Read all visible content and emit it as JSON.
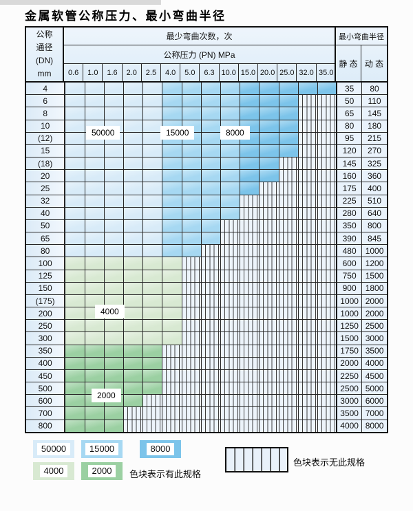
{
  "title": "金属软管公称压力、最小弯曲半径",
  "header": {
    "dn_lines": [
      "公称",
      "通径",
      "(DN)",
      "mm"
    ],
    "cycles_label": "最少弯曲次数，次",
    "pressure_label": "公称压力 (PN) MPa",
    "radius_label": "最小弯曲半径",
    "static_label": "静 态",
    "dynamic_label": "动 态"
  },
  "chart_data": {
    "type": "table",
    "title": "金属软管公称压力、最小弯曲半径",
    "pressure_columns_mpa": [
      "0.6",
      "1.0",
      "1.6",
      "2.0",
      "2.5",
      "4.0",
      "5.0",
      "6.3",
      "10.0",
      "15.0",
      "20.0",
      "25.0",
      "32.0",
      "35.0"
    ],
    "blue_cycle_tier_by_column": [
      "50000",
      "50000",
      "50000",
      "50000",
      "50000",
      "15000",
      "15000",
      "15000",
      "15000",
      "8000",
      "8000",
      "8000",
      "8000",
      "8000"
    ],
    "rows": [
      {
        "dn": "4",
        "available_columns": 14,
        "tier": "blue",
        "static": "35",
        "dynamic": "80"
      },
      {
        "dn": "6",
        "available_columns": 12,
        "tier": "blue",
        "static": "50",
        "dynamic": "110"
      },
      {
        "dn": "8",
        "available_columns": 12,
        "tier": "blue",
        "static": "65",
        "dynamic": "145"
      },
      {
        "dn": "10",
        "available_columns": 12,
        "tier": "blue",
        "static": "80",
        "dynamic": "180"
      },
      {
        "dn": "(12)",
        "available_columns": 12,
        "tier": "blue",
        "static": "95",
        "dynamic": "215"
      },
      {
        "dn": "15",
        "available_columns": 12,
        "tier": "blue",
        "static": "120",
        "dynamic": "270"
      },
      {
        "dn": "(18)",
        "available_columns": 11,
        "tier": "blue",
        "static": "145",
        "dynamic": "325"
      },
      {
        "dn": "20",
        "available_columns": 11,
        "tier": "blue",
        "static": "160",
        "dynamic": "360"
      },
      {
        "dn": "25",
        "available_columns": 10,
        "tier": "blue",
        "static": "175",
        "dynamic": "400"
      },
      {
        "dn": "32",
        "available_columns": 9,
        "tier": "blue",
        "static": "225",
        "dynamic": "510"
      },
      {
        "dn": "40",
        "available_columns": 9,
        "tier": "blue",
        "static": "280",
        "dynamic": "640"
      },
      {
        "dn": "50",
        "available_columns": 8,
        "tier": "blue",
        "static": "350",
        "dynamic": "800"
      },
      {
        "dn": "65",
        "available_columns": 8,
        "tier": "blue",
        "static": "390",
        "dynamic": "845"
      },
      {
        "dn": "80",
        "available_columns": 7,
        "tier": "blue",
        "static": "480",
        "dynamic": "1000"
      },
      {
        "dn": "100",
        "available_columns": 6,
        "tier": "4000",
        "static": "600",
        "dynamic": "1200"
      },
      {
        "dn": "125",
        "available_columns": 6,
        "tier": "4000",
        "static": "750",
        "dynamic": "1500"
      },
      {
        "dn": "150",
        "available_columns": 6,
        "tier": "4000",
        "static": "900",
        "dynamic": "1800"
      },
      {
        "dn": "(175)",
        "available_columns": 6,
        "tier": "4000",
        "static": "1000",
        "dynamic": "2000"
      },
      {
        "dn": "200",
        "available_columns": 6,
        "tier": "4000",
        "static": "1000",
        "dynamic": "2000"
      },
      {
        "dn": "250",
        "available_columns": 6,
        "tier": "4000",
        "static": "1250",
        "dynamic": "2500"
      },
      {
        "dn": "300",
        "available_columns": 6,
        "tier": "4000",
        "static": "1500",
        "dynamic": "3000"
      },
      {
        "dn": "350",
        "available_columns": 5,
        "tier": "2000",
        "static": "1750",
        "dynamic": "3500"
      },
      {
        "dn": "400",
        "available_columns": 5,
        "tier": "2000",
        "static": "2000",
        "dynamic": "4000"
      },
      {
        "dn": "450",
        "available_columns": 5,
        "tier": "2000",
        "static": "2250",
        "dynamic": "4500"
      },
      {
        "dn": "500",
        "available_columns": 5,
        "tier": "2000",
        "static": "2500",
        "dynamic": "5000"
      },
      {
        "dn": "600",
        "available_columns": 4,
        "tier": "2000",
        "static": "3000",
        "dynamic": "6000"
      },
      {
        "dn": "700",
        "available_columns": 3,
        "tier": "2000",
        "static": "3500",
        "dynamic": "7000"
      },
      {
        "dn": "800",
        "available_columns": 3,
        "tier": "2000",
        "static": "4000",
        "dynamic": "8000"
      }
    ]
  },
  "overlays": [
    {
      "text": "50000"
    },
    {
      "text": "15000"
    },
    {
      "text": "8000"
    },
    {
      "text": "4000"
    },
    {
      "text": "2000"
    }
  ],
  "legend": {
    "items": [
      {
        "label": "50000",
        "color_key": "c50000"
      },
      {
        "label": "15000",
        "color_key": "c15000"
      },
      {
        "label": "8000",
        "color_key": "c8000"
      },
      {
        "label": "4000",
        "color_key": "c4000"
      },
      {
        "label": "2000",
        "color_key": "c2000"
      }
    ],
    "has_spec_text": "色块表示有此规格",
    "no_spec_text": "色块表示无此规格"
  },
  "colors": {
    "c50000": "#d8ebf8",
    "c15000": "#a6d8f2",
    "c8000": "#7cc4ea",
    "c4000": "#d8e9d2",
    "c2000": "#9bd0a2"
  }
}
